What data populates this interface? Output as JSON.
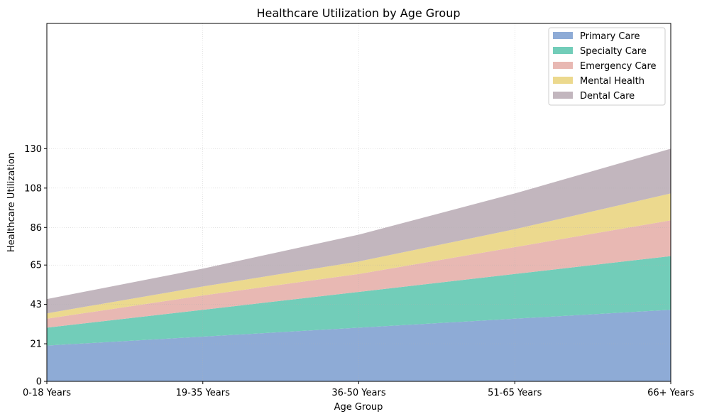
{
  "chart_data": {
    "type": "area",
    "stacked": true,
    "title": "Healthcare Utilization by Age Group",
    "xlabel": "Age Group",
    "ylabel": "Healthcare Utilization",
    "categories": [
      "0-18 Years",
      "19-35 Years",
      "36-50 Years",
      "51-65 Years",
      "66+ Years"
    ],
    "series": [
      {
        "name": "Primary Care",
        "values": [
          20,
          25,
          30,
          35,
          40
        ],
        "color": "#8eabd6"
      },
      {
        "name": "Specialty Care",
        "values": [
          10,
          15,
          20,
          25,
          30
        ],
        "color": "#72cdb9"
      },
      {
        "name": "Emergency Care",
        "values": [
          5,
          8,
          10,
          15,
          20
        ],
        "color": "#e8b8b3"
      },
      {
        "name": "Mental Health",
        "values": [
          3,
          5,
          7,
          10,
          15
        ],
        "color": "#ecd98e"
      },
      {
        "name": "Dental Care",
        "values": [
          8,
          10,
          15,
          20,
          25
        ],
        "color": "#c2b6be"
      }
    ],
    "yticks": [
      "0",
      "21",
      "43",
      "65",
      "86",
      "108",
      "130"
    ],
    "ylim": [
      0,
      200
    ],
    "grid": true,
    "legend_position": "top-right"
  }
}
